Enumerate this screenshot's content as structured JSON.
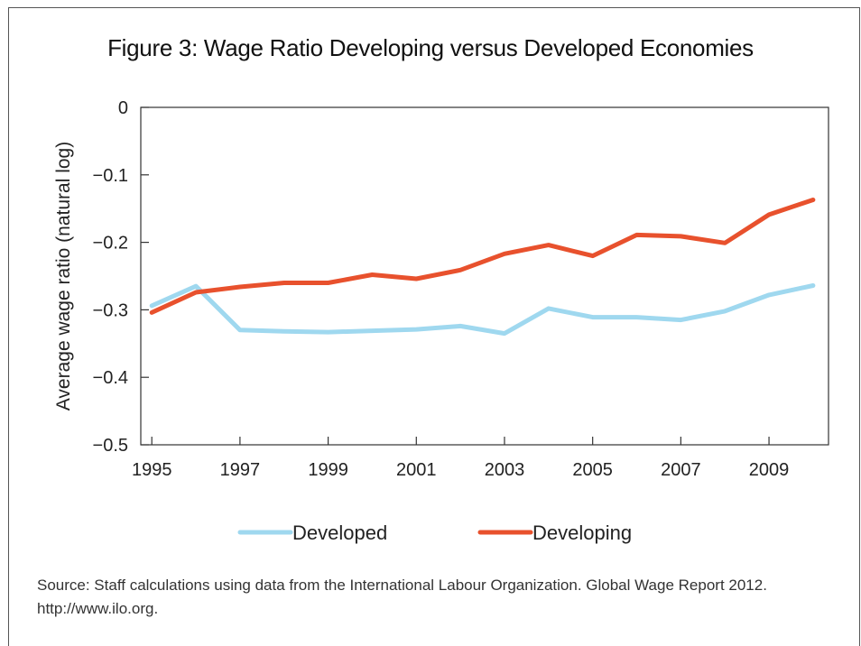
{
  "chart_data": {
    "type": "line",
    "title": "Figure 3: Wage Ratio Developing versus Developed Economies",
    "ylabel": "Average wage ratio (natural log)",
    "xlabel": "",
    "ylim": [
      -0.5,
      0
    ],
    "yticks": [
      0,
      -0.1,
      -0.2,
      -0.3,
      -0.4,
      -0.5
    ],
    "ytick_labels": [
      "0",
      "−0.1",
      "−0.2",
      "−0.3",
      "−0.4",
      "−0.5"
    ],
    "xlim": [
      1994.75,
      2010.35
    ],
    "xticks": [
      1995,
      1997,
      1999,
      2001,
      2003,
      2005,
      2007,
      2009
    ],
    "xtick_labels": [
      "1995",
      "1997",
      "1999",
      "2001",
      "2003",
      "2005",
      "2007",
      "2009"
    ],
    "x": [
      1995,
      1996,
      1997,
      1998,
      1999,
      2000,
      2001,
      2002,
      2003,
      2004,
      2005,
      2006,
      2007,
      2008,
      2009,
      2010
    ],
    "series": [
      {
        "name": "Developed",
        "color": "#9fd8ef",
        "values": [
          -0.294,
          -0.265,
          -0.33,
          -0.332,
          -0.333,
          -0.331,
          -0.329,
          -0.324,
          -0.335,
          -0.298,
          -0.311,
          -0.311,
          -0.315,
          -0.302,
          -0.278,
          -0.264
        ]
      },
      {
        "name": "Developing",
        "color": "#e8512d",
        "values": [
          -0.304,
          -0.274,
          -0.266,
          -0.26,
          -0.26,
          -0.248,
          -0.254,
          -0.241,
          -0.217,
          -0.204,
          -0.22,
          -0.189,
          -0.191,
          -0.201,
          -0.159,
          -0.137
        ]
      }
    ],
    "grid": false,
    "legend_position": "bottom-center"
  },
  "source": "Source: Staff calculations using data from the International Labour Organization. Global Wage Report 2012. http://www.ilo.org."
}
